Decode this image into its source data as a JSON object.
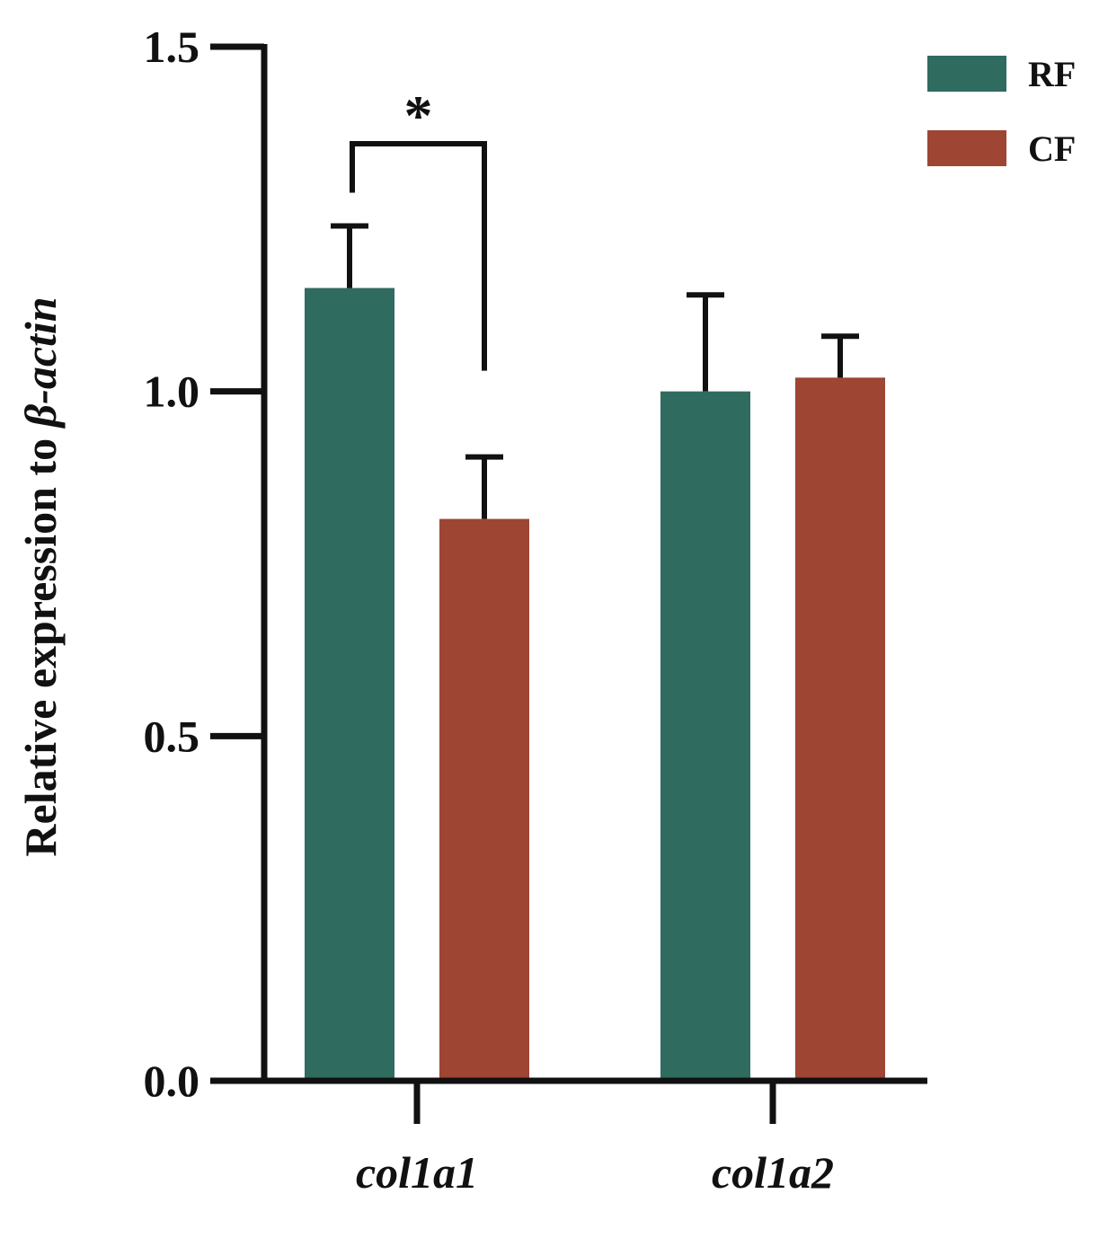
{
  "chart_data": {
    "type": "bar",
    "categories": [
      "col1a1",
      "col1a2"
    ],
    "series": [
      {
        "name": "RF",
        "color": "#2f6b5f",
        "values": [
          1.15,
          1.0
        ],
        "errors": [
          0.09,
          0.14
        ]
      },
      {
        "name": "CF",
        "color": "#9e4533",
        "values": [
          0.815,
          1.02
        ],
        "errors": [
          0.09,
          0.06
        ]
      }
    ],
    "ylabel_prefix": "Relative expression to ",
    "ylabel_gene": "β-actin",
    "ylim": [
      0,
      1.5
    ],
    "yticks": [
      "0.0",
      "0.5",
      "1.0",
      "1.5"
    ],
    "legend_position": "top-right",
    "grid": false,
    "significance": [
      {
        "category": "col1a1",
        "label": "*"
      }
    ]
  }
}
